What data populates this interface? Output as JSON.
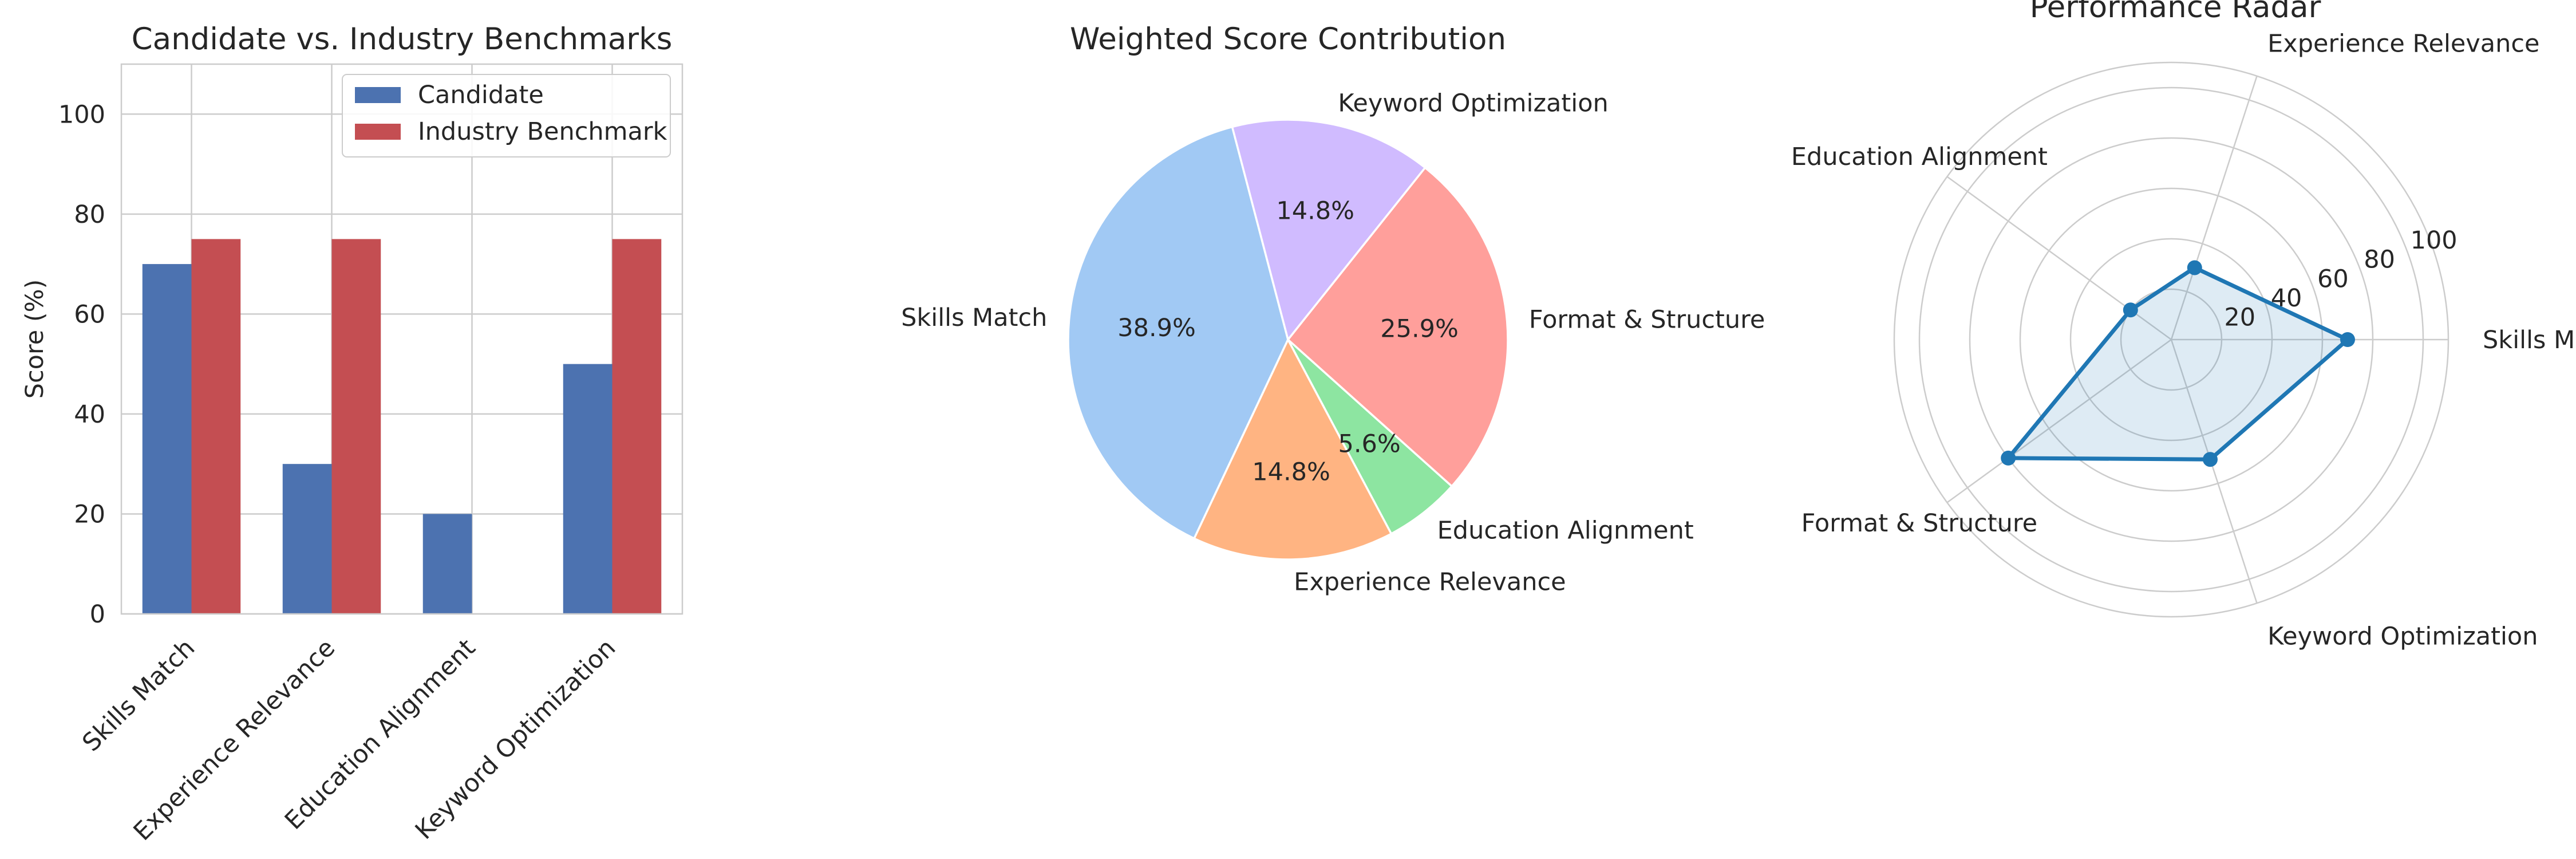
{
  "chart_data": [
    {
      "type": "bar",
      "title": "Candidate vs. Industry Benchmarks",
      "xlabel": "",
      "ylabel": "Score (%)",
      "ylim": [
        0,
        110
      ],
      "yticks": [
        0,
        20,
        40,
        60,
        80,
        100
      ],
      "grid": true,
      "legend_position": "upper-right",
      "categories": [
        "Skills Match",
        "Experience Relevance",
        "Education Alignment",
        "Keyword Optimization"
      ],
      "series": [
        {
          "name": "Candidate",
          "color": "#4c72b0",
          "values": [
            70,
            30,
            20,
            50
          ]
        },
        {
          "name": "Industry Benchmark",
          "color": "#c44e52",
          "values": [
            75,
            75,
            0,
            75
          ]
        }
      ]
    },
    {
      "type": "pie",
      "title": "Weighted Score Contribution",
      "slices": [
        {
          "label": "Skills Match",
          "value": 38.9,
          "pct_label": "38.9%",
          "color": "#a1c9f4"
        },
        {
          "label": "Experience Relevance",
          "value": 14.8,
          "pct_label": "14.8%",
          "color": "#ffb482"
        },
        {
          "label": "Education Alignment",
          "value": 5.6,
          "pct_label": "5.6%",
          "color": "#8de5a1"
        },
        {
          "label": "Format & Structure",
          "value": 25.9,
          "pct_label": "25.9%",
          "color": "#ff9f9b"
        },
        {
          "label": "Keyword Optimization",
          "value": 14.8,
          "pct_label": "14.8%",
          "color": "#d0bbff"
        }
      ]
    },
    {
      "type": "radar",
      "title": "Performance Radar",
      "axes": [
        "Skills Match",
        "Experience Relevance",
        "Education Alignment",
        "Format & Structure",
        "Keyword Optimization"
      ],
      "values": [
        70,
        30,
        20,
        80,
        50
      ],
      "rmax": 110,
      "rticks": [
        20,
        40,
        60,
        80,
        100
      ],
      "color": "#1f77b4",
      "grid": true
    }
  ]
}
